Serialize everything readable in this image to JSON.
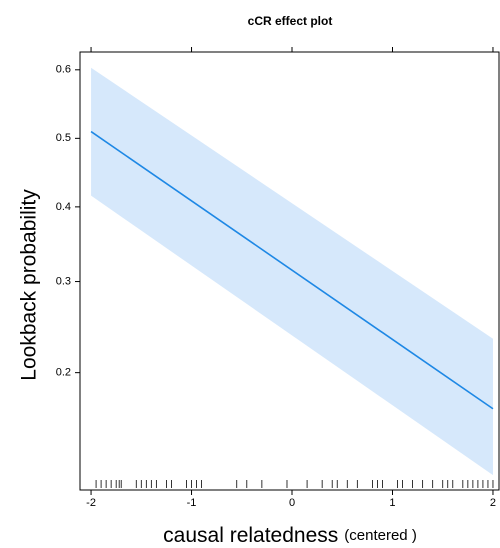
{
  "chart_data": {
    "type": "effect",
    "title": "cCR effect plot",
    "xlabel": "causal relatedness",
    "xlabel_note": "(centered )",
    "ylabel": "Lookback probability",
    "x": [
      -2,
      2
    ],
    "fit": [
      0.51,
      0.168
    ],
    "lower": [
      0.416,
      0.12
    ],
    "upper": [
      0.603,
      0.234
    ],
    "line_color": "#1e88e5",
    "band_color": "#d6e8fb",
    "rug": [
      -1.95,
      -1.9,
      -1.85,
      -1.8,
      -1.75,
      -1.72,
      -1.7,
      -1.55,
      -1.5,
      -1.45,
      -1.4,
      -1.35,
      -1.25,
      -1.2,
      -1.05,
      -1.0,
      -0.95,
      -0.9,
      -0.55,
      -0.45,
      -0.3,
      -0.05,
      0.15,
      0.3,
      0.4,
      0.45,
      0.55,
      0.65,
      0.8,
      0.85,
      0.9,
      1.05,
      1.1,
      1.2,
      1.3,
      1.4,
      1.5,
      1.55,
      1.6,
      1.7,
      1.75,
      1.8,
      1.85,
      1.9,
      1.95,
      2.0
    ],
    "xlim": [
      -2.11,
      2.06
    ],
    "xticks": [
      -2,
      -1,
      0,
      1,
      2
    ],
    "ylim": [
      0.111,
      0.625
    ],
    "yticks": [
      0.2,
      0.3,
      0.4,
      0.5,
      0.6
    ],
    "y_scale": "logit"
  }
}
